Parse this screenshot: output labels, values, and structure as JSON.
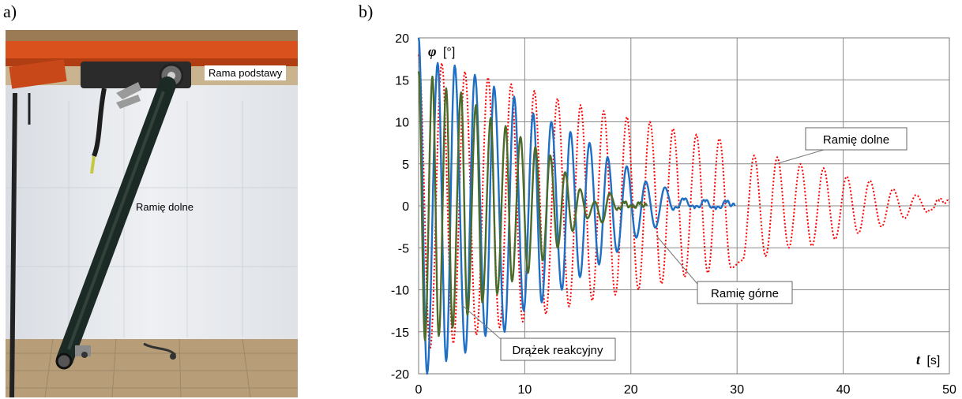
{
  "panels": {
    "a": "a)",
    "b": "b)"
  },
  "photo": {
    "label_frame": "Rama podstawy",
    "label_arm": "Ramię dolne"
  },
  "chart_data": {
    "type": "line",
    "ylabel_symbol": "φ",
    "ylabel_unit": "[°]",
    "xlabel_symbol": "t",
    "xlabel_unit": "[s]",
    "xlim": [
      0,
      50
    ],
    "ylim": [
      -20,
      20
    ],
    "xticks": [
      0,
      10,
      20,
      30,
      40,
      50
    ],
    "yticks": [
      20,
      15,
      10,
      5,
      0,
      -5,
      -10,
      -15,
      -20
    ],
    "grid": true,
    "series": [
      {
        "name": "Ramię dolne",
        "color": "#ff0000",
        "style": "dotted",
        "period": 2.18,
        "amp0": 18.0,
        "decay": 0.052,
        "t_start": 0.0,
        "t_end": 50.0,
        "x_peaks": [
          0.0,
          1.09,
          2.18,
          3.27,
          4.36,
          5.45,
          6.54,
          7.63,
          8.72,
          9.81,
          10.9,
          11.99,
          13.08,
          14.17,
          15.26,
          16.35,
          17.44,
          18.53,
          19.62,
          20.71,
          21.8,
          22.89,
          23.98,
          25.07,
          26.16,
          27.25,
          28.34,
          29.43,
          30.52,
          31.61,
          32.7,
          33.79,
          34.88,
          35.97,
          37.06,
          38.15,
          39.24,
          40.33,
          41.42,
          42.51,
          43.6,
          44.69,
          45.78,
          46.87,
          47.96,
          49.05,
          50.0
        ],
        "y_peaks": [
          18.0,
          -17.0,
          17.0,
          -16.4,
          16.0,
          -15.4,
          15.3,
          -14.5,
          14.5,
          -13.8,
          13.7,
          -12.9,
          12.8,
          -12.0,
          12.0,
          -11.3,
          11.3,
          -10.6,
          10.6,
          -10.0,
          10.0,
          -9.3,
          9.2,
          -8.5,
          8.5,
          -8.0,
          8.0,
          -7.4,
          -6.5,
          6.0,
          -6.0,
          5.8,
          -5.0,
          5.0,
          -4.8,
          4.5,
          -4.0,
          3.5,
          -3.3,
          3.0,
          -2.5,
          2.0,
          -1.5,
          1.3,
          -0.8,
          0.6,
          0.4
        ]
      },
      {
        "name": "Ramię górne",
        "color": "#1f6fc5",
        "style": "solid",
        "x_peaks": [
          0.0,
          0.8,
          1.8,
          2.6,
          3.4,
          4.4,
          5.3,
          6.3,
          7.1,
          8.1,
          9.0,
          9.9,
          10.8,
          11.6,
          12.5,
          13.5,
          14.3,
          15.2,
          16.1,
          17.0,
          17.8,
          18.7,
          19.6,
          20.5,
          21.4,
          22.3,
          23.2,
          24.0,
          25.0,
          26.0,
          27.0,
          28.0,
          29.0,
          29.8
        ],
        "y_peaks": [
          20.0,
          -20.0,
          17.0,
          -18.5,
          16.7,
          -17.5,
          15.6,
          -15.5,
          14.2,
          -15.0,
          13.0,
          -12.5,
          11.0,
          -11.5,
          10.0,
          -10.0,
          8.8,
          -8.5,
          7.5,
          -7.0,
          5.8,
          -5.5,
          4.7,
          -3.8,
          2.9,
          -2.6,
          2.2,
          -0.5,
          0.7,
          -0.3,
          0.5,
          -0.4,
          0.4,
          0.0
        ]
      },
      {
        "name": "Drążek reakcyjny",
        "color": "#4b6b2a",
        "style": "solid",
        "x_peaks": [
          0.0,
          0.6,
          1.3,
          1.9,
          2.6,
          3.2,
          4.0,
          4.6,
          5.4,
          6.0,
          6.8,
          7.4,
          8.2,
          8.8,
          9.6,
          10.3,
          11.0,
          11.7,
          12.4,
          13.1,
          13.8,
          14.5,
          15.2,
          15.9,
          16.6,
          17.3,
          18.0,
          18.7,
          19.4,
          20.1,
          20.8,
          21.5
        ],
        "y_peaks": [
          16.0,
          -16.0,
          15.4,
          -15.5,
          14.0,
          -14.5,
          13.5,
          -13.0,
          12.0,
          -11.5,
          10.5,
          -10.5,
          9.5,
          -9.0,
          8.2,
          -8.0,
          7.0,
          -6.5,
          6.0,
          -5.0,
          4.0,
          -3.0,
          2.0,
          -1.5,
          0.5,
          -2.0,
          1.5,
          -0.5,
          0.3,
          -0.2,
          0.2,
          0.0
        ]
      }
    ],
    "annotations": {
      "lower_arm": "Ramię dolne",
      "upper_arm": "Ramię górne",
      "reaction_rod": "Drążek reakcyjny"
    }
  }
}
